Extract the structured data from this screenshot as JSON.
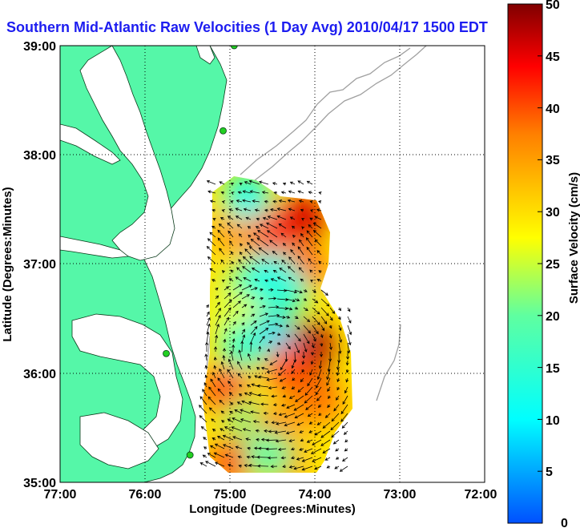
{
  "chart_data": {
    "type": "heatmap",
    "title": "Southern Mid-Atlantic Raw Velocities (1 Day Avg) 2010/04/17 1500 EDT",
    "xlabel": "Longitude (Degrees:Minutes)",
    "ylabel": "Latitude (Degrees:Minutes)",
    "x_ticks": [
      "77:00",
      "76:00",
      "75:00",
      "74:00",
      "73:00",
      "72:00"
    ],
    "y_ticks": [
      "39:00",
      "38:00",
      "37:00",
      "36:00",
      "35:00"
    ],
    "xlim": [
      -77,
      -72
    ],
    "ylim": [
      35,
      39
    ],
    "grid": true,
    "colorbar": {
      "label": "Surface Velocity (cm/s)",
      "min": 0,
      "max": 50,
      "ticks": [
        "0",
        "5",
        "10",
        "15",
        "20",
        "25",
        "30",
        "35",
        "40",
        "45",
        "50"
      ]
    },
    "colors": {
      "land": "#55f7a8",
      "water": "#ffffff",
      "contour": "#a0a0a0",
      "title": "#1d1df0",
      "station": "#22d022"
    },
    "velocity_field": [
      {
        "lon": -74.28,
        "lat": 36.1,
        "speed": 50
      },
      {
        "lon": -74.1,
        "lat": 35.95,
        "speed": 48
      },
      {
        "lon": -74.4,
        "lat": 36.25,
        "speed": 47
      },
      {
        "lon": -74.05,
        "lat": 36.25,
        "speed": 48
      },
      {
        "lon": -74.52,
        "lat": 36.32,
        "speed": 8
      },
      {
        "lon": -74.3,
        "lat": 36.05,
        "speed": 40
      },
      {
        "lon": -74.8,
        "lat": 36.75,
        "speed": 16
      },
      {
        "lon": -74.15,
        "lat": 36.95,
        "speed": 40
      },
      {
        "lon": -74.55,
        "lat": 36.95,
        "speed": 12
      },
      {
        "lon": -74.15,
        "lat": 37.42,
        "speed": 46
      },
      {
        "lon": -74.55,
        "lat": 37.3,
        "speed": 42
      },
      {
        "lon": -74.95,
        "lat": 37.3,
        "speed": 35
      },
      {
        "lon": -74.8,
        "lat": 37.62,
        "speed": 12
      },
      {
        "lon": -74.98,
        "lat": 36.55,
        "speed": 26
      },
      {
        "lon": -74.85,
        "lat": 36.25,
        "speed": 16
      },
      {
        "lon": -75.05,
        "lat": 35.85,
        "speed": 40
      },
      {
        "lon": -74.78,
        "lat": 35.55,
        "speed": 22
      },
      {
        "lon": -74.45,
        "lat": 35.5,
        "speed": 36
      },
      {
        "lon": -74.4,
        "lat": 35.2,
        "speed": 38
      },
      {
        "lon": -74.95,
        "lat": 35.2,
        "speed": 40
      },
      {
        "lon": -74.55,
        "lat": 35.25,
        "speed": 20
      },
      {
        "lon": -73.95,
        "lat": 35.75,
        "speed": 38
      },
      {
        "lon": -74.35,
        "lat": 36.75,
        "speed": 14
      }
    ],
    "stations": [
      {
        "lon": -74.95,
        "lat": 39.0
      },
      {
        "lon": -75.08,
        "lat": 38.22
      },
      {
        "lon": -75.75,
        "lat": 36.18
      },
      {
        "lon": -75.47,
        "lat": 35.25
      }
    ]
  }
}
